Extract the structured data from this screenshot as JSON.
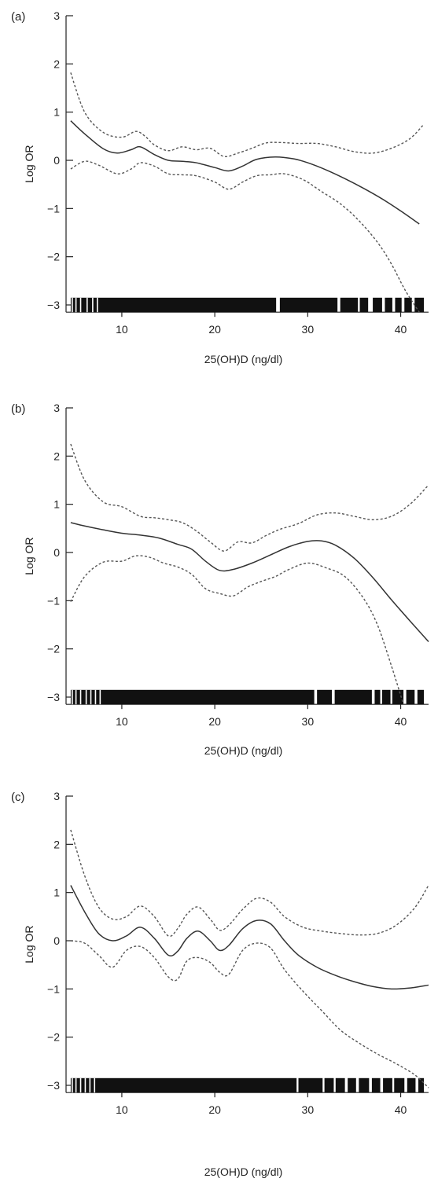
{
  "chart_data": [
    {
      "type": "line",
      "panel_label": "(a)",
      "xlabel": "25(OH)D (ng/dl)",
      "ylabel": "Log OR",
      "xlim": [
        4,
        43
      ],
      "ylim": [
        -3.15,
        3
      ],
      "xticks": [
        10,
        20,
        30,
        40
      ],
      "yticks": [
        3,
        2,
        1,
        0,
        -1,
        -2,
        -3
      ],
      "ytick_labels": [
        "3",
        "2",
        "1",
        "0",
        "−1",
        "−2",
        "−3"
      ],
      "rug": {
        "x_range": [
          4.5,
          42.5
        ],
        "gaps": [
          [
            26.6,
            27.0
          ],
          [
            33.2,
            33.5
          ],
          [
            35.4,
            35.6
          ],
          [
            36.5,
            37.0
          ],
          [
            38.0,
            38.3
          ],
          [
            39.1,
            39.4
          ],
          [
            40.1,
            40.4
          ],
          [
            41.2,
            41.5
          ]
        ],
        "bottom_ticks": [
          4.6,
          5.0,
          5.5,
          6.2,
          6.8,
          7.3
        ]
      },
      "series": [
        {
          "role": "fit",
          "x": [
            4.5,
            6,
            8,
            9.5,
            11,
            12,
            13.5,
            15,
            16.5,
            18,
            20,
            21.5,
            23,
            24.5,
            26.5,
            28.5,
            30,
            32,
            34,
            36,
            38,
            40,
            42
          ],
          "y": [
            0.82,
            0.55,
            0.24,
            0.15,
            0.22,
            0.28,
            0.12,
            0.0,
            -0.02,
            -0.05,
            -0.15,
            -0.22,
            -0.12,
            0.02,
            0.07,
            0.03,
            -0.05,
            -0.2,
            -0.38,
            -0.58,
            -0.8,
            -1.05,
            -1.32
          ]
        },
        {
          "role": "ci_upper",
          "x": [
            4.5,
            6,
            8,
            10,
            11.5,
            12.5,
            13.5,
            15,
            16.5,
            18,
            19.5,
            21,
            22.5,
            24,
            25.5,
            27,
            29,
            31,
            33,
            35,
            37,
            39,
            41,
            42.5
          ],
          "y": [
            1.82,
            1.0,
            0.58,
            0.48,
            0.6,
            0.5,
            0.32,
            0.2,
            0.28,
            0.22,
            0.25,
            0.08,
            0.15,
            0.25,
            0.36,
            0.37,
            0.35,
            0.35,
            0.28,
            0.18,
            0.15,
            0.25,
            0.45,
            0.75
          ]
        },
        {
          "role": "ci_lower",
          "x": [
            4.5,
            6,
            7.5,
            9.5,
            11,
            12,
            13.5,
            15,
            16.5,
            18,
            20,
            21.5,
            23,
            24.5,
            26,
            27.5,
            29.5,
            31.5,
            33.5,
            35.5,
            37.5,
            39,
            40.5,
            42
          ],
          "y": [
            -0.18,
            -0.02,
            -0.1,
            -0.28,
            -0.18,
            -0.05,
            -0.12,
            -0.28,
            -0.3,
            -0.32,
            -0.45,
            -0.6,
            -0.45,
            -0.32,
            -0.3,
            -0.28,
            -0.4,
            -0.65,
            -0.9,
            -1.25,
            -1.7,
            -2.15,
            -2.7,
            -3.15
          ]
        }
      ]
    },
    {
      "type": "line",
      "panel_label": "(b)",
      "xlabel": "25(OH)D (ng/dl)",
      "ylabel": "Log OR",
      "xlim": [
        4,
        43
      ],
      "ylim": [
        -3.15,
        3
      ],
      "xticks": [
        10,
        20,
        30,
        40
      ],
      "yticks": [
        3,
        2,
        1,
        0,
        -1,
        -2,
        -3
      ],
      "ytick_labels": [
        "3",
        "2",
        "1",
        "0",
        "−1",
        "−2",
        "−3"
      ],
      "rug": {
        "x_range": [
          4.5,
          42.5
        ],
        "gaps": [
          [
            30.7,
            31.0
          ],
          [
            32.6,
            32.9
          ],
          [
            36.9,
            37.2
          ],
          [
            37.8,
            38.0
          ],
          [
            38.9,
            39.1
          ],
          [
            40.3,
            40.6
          ],
          [
            41.5,
            41.8
          ]
        ],
        "bottom_ticks": [
          4.6,
          5.0,
          5.5,
          6.1,
          6.6,
          7.1,
          7.6
        ]
      },
      "series": [
        {
          "role": "fit",
          "x": [
            4.5,
            6,
            8,
            10,
            12,
            14,
            16,
            17.5,
            19,
            20.5,
            22,
            24,
            26,
            28,
            30,
            31.5,
            33,
            35,
            37,
            39,
            41,
            43
          ],
          "y": [
            0.62,
            0.55,
            0.47,
            0.4,
            0.36,
            0.3,
            0.17,
            0.07,
            -0.18,
            -0.37,
            -0.35,
            -0.22,
            -0.05,
            0.12,
            0.23,
            0.24,
            0.15,
            -0.12,
            -0.52,
            -0.98,
            -1.42,
            -1.85
          ]
        },
        {
          "role": "ci_upper",
          "x": [
            4.5,
            6,
            8,
            10,
            12,
            13.5,
            15,
            16.5,
            18,
            19.5,
            21,
            22.5,
            24,
            25.5,
            27,
            29,
            31,
            33,
            35,
            37,
            39,
            41,
            43
          ],
          "y": [
            2.25,
            1.5,
            1.05,
            0.95,
            0.75,
            0.72,
            0.68,
            0.62,
            0.45,
            0.22,
            0.03,
            0.22,
            0.2,
            0.35,
            0.48,
            0.6,
            0.78,
            0.82,
            0.75,
            0.68,
            0.75,
            1.0,
            1.4
          ]
        },
        {
          "role": "ci_lower",
          "x": [
            4.5,
            6,
            8,
            10,
            11.5,
            13,
            14.5,
            16,
            17.5,
            19,
            20.5,
            22,
            23.5,
            25,
            26.5,
            28,
            30,
            32,
            34,
            36,
            37.5,
            39,
            40.3
          ],
          "y": [
            -1.02,
            -0.5,
            -0.2,
            -0.18,
            -0.07,
            -0.1,
            -0.22,
            -0.3,
            -0.45,
            -0.75,
            -0.85,
            -0.9,
            -0.72,
            -0.6,
            -0.5,
            -0.35,
            -0.22,
            -0.32,
            -0.5,
            -0.95,
            -1.5,
            -2.35,
            -3.15
          ]
        }
      ]
    },
    {
      "type": "line",
      "panel_label": "(c)",
      "xlabel": "25(OH)D (ng/dl)",
      "ylabel": "Log OR",
      "xlim": [
        4,
        43
      ],
      "ylim": [
        -3.15,
        3
      ],
      "xticks": [
        10,
        20,
        30,
        40
      ],
      "yticks": [
        3,
        2,
        1,
        0,
        -1,
        -2,
        -3
      ],
      "ytick_labels": [
        "3",
        "2",
        "1",
        "0",
        "−1",
        "−2",
        "−3"
      ],
      "rug": {
        "x_range": [
          4.5,
          42.5
        ],
        "gaps": [
          [
            28.8,
            29.0
          ],
          [
            31.6,
            31.8
          ],
          [
            32.8,
            33.0
          ],
          [
            34.0,
            34.3
          ],
          [
            35.2,
            35.5
          ],
          [
            36.6,
            36.9
          ],
          [
            37.8,
            38.1
          ],
          [
            39.1,
            39.3
          ],
          [
            40.4,
            40.7
          ],
          [
            41.6,
            41.9
          ]
        ],
        "bottom_ticks": [
          4.6,
          5.0,
          5.5,
          6.0,
          6.5,
          7.0
        ]
      },
      "series": [
        {
          "role": "fit",
          "x": [
            4.5,
            6,
            7.5,
            9,
            10.5,
            12,
            13.5,
            15,
            16,
            17,
            18.2,
            19.5,
            20.5,
            21.5,
            23,
            24.5,
            26,
            27.5,
            29,
            31,
            33,
            35,
            37,
            39,
            41,
            43
          ],
          "y": [
            1.15,
            0.6,
            0.15,
            0.0,
            0.1,
            0.28,
            0.05,
            -0.3,
            -0.22,
            0.05,
            0.2,
            0.0,
            -0.2,
            -0.1,
            0.25,
            0.42,
            0.35,
            0.0,
            -0.3,
            -0.55,
            -0.72,
            -0.85,
            -0.95,
            -1.0,
            -0.98,
            -0.92
          ]
        },
        {
          "role": "ci_upper",
          "x": [
            4.5,
            6,
            7.5,
            9,
            10.5,
            12,
            13.5,
            15,
            16,
            17,
            18.2,
            19.5,
            20.5,
            21.5,
            23,
            24.5,
            26,
            27.5,
            29.5,
            31.5,
            33.5,
            35.5,
            37.5,
            39.5,
            41.5,
            43
          ],
          "y": [
            2.3,
            1.35,
            0.7,
            0.45,
            0.5,
            0.72,
            0.5,
            0.1,
            0.25,
            0.55,
            0.7,
            0.45,
            0.22,
            0.32,
            0.65,
            0.88,
            0.8,
            0.5,
            0.28,
            0.2,
            0.15,
            0.12,
            0.15,
            0.32,
            0.68,
            1.15
          ]
        },
        {
          "role": "ci_lower",
          "x": [
            4.5,
            6,
            7.5,
            9,
            10.5,
            12,
            13.5,
            15,
            16,
            17,
            18.2,
            19.5,
            20.5,
            21.5,
            23,
            24.5,
            26,
            27.5,
            29.5,
            31.5,
            33.5,
            35.5,
            37.5,
            39.5,
            41.5,
            43
          ],
          "y": [
            0.0,
            -0.05,
            -0.3,
            -0.55,
            -0.2,
            -0.12,
            -0.35,
            -0.75,
            -0.8,
            -0.42,
            -0.35,
            -0.45,
            -0.65,
            -0.7,
            -0.2,
            -0.05,
            -0.15,
            -0.6,
            -1.05,
            -1.45,
            -1.85,
            -2.12,
            -2.35,
            -2.55,
            -2.78,
            -3.05
          ]
        }
      ]
    }
  ]
}
